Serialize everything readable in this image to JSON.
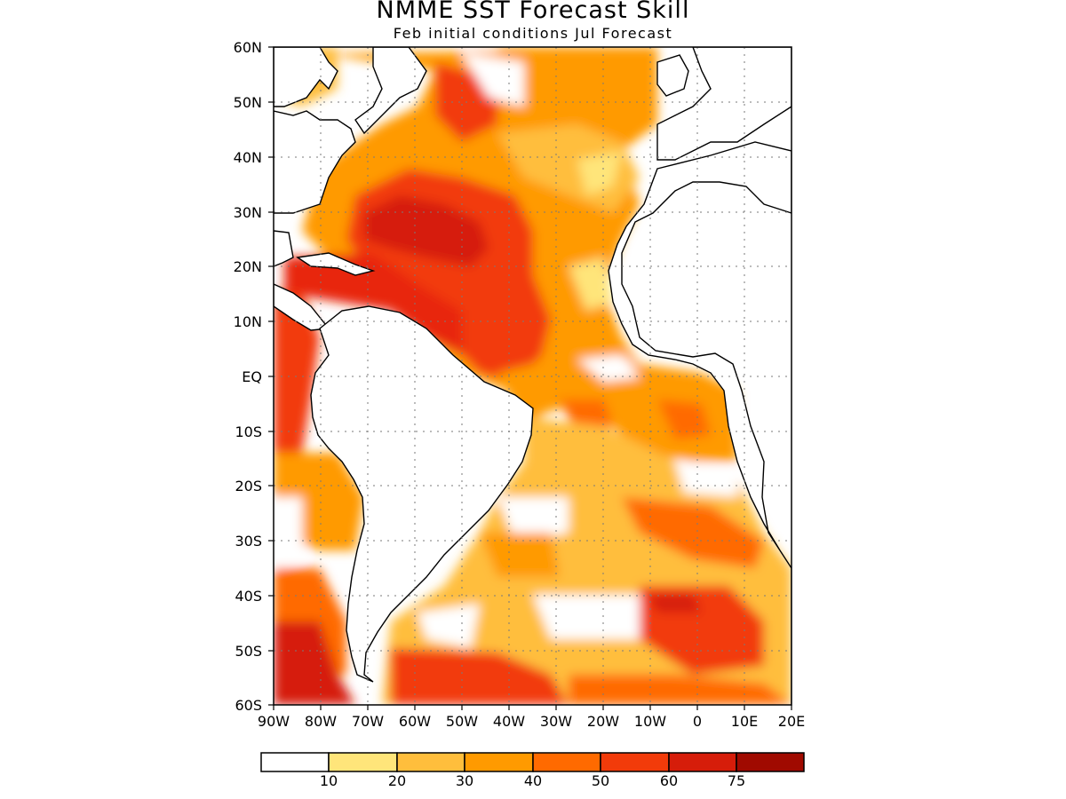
{
  "title": "NMME SST Forecast Skill",
  "subtitle": "Feb initial conditions  Jul Forecast",
  "lat_labels": [
    "60N",
    "50N",
    "40N",
    "30N",
    "20N",
    "10N",
    "EQ",
    "10S",
    "20S",
    "30S",
    "40S",
    "50S",
    "60S"
  ],
  "lon_labels": [
    "90W",
    "80W",
    "70W",
    "60W",
    "50W",
    "40W",
    "30W",
    "20W",
    "10W",
    "0",
    "10E",
    "20E"
  ],
  "colorbar": {
    "labels": [
      "10",
      "20",
      "30",
      "40",
      "50",
      "60",
      "75"
    ],
    "colors": [
      "#ffffff",
      "#ffe57a",
      "#ffbe3c",
      "#ff9a00",
      "#ff6a00",
      "#f23b0a",
      "#d61d0a",
      "#a00a00"
    ]
  },
  "colors": {
    "land": "#ffffff",
    "coast": "#000000",
    "grid": "#7a7a7a"
  }
}
